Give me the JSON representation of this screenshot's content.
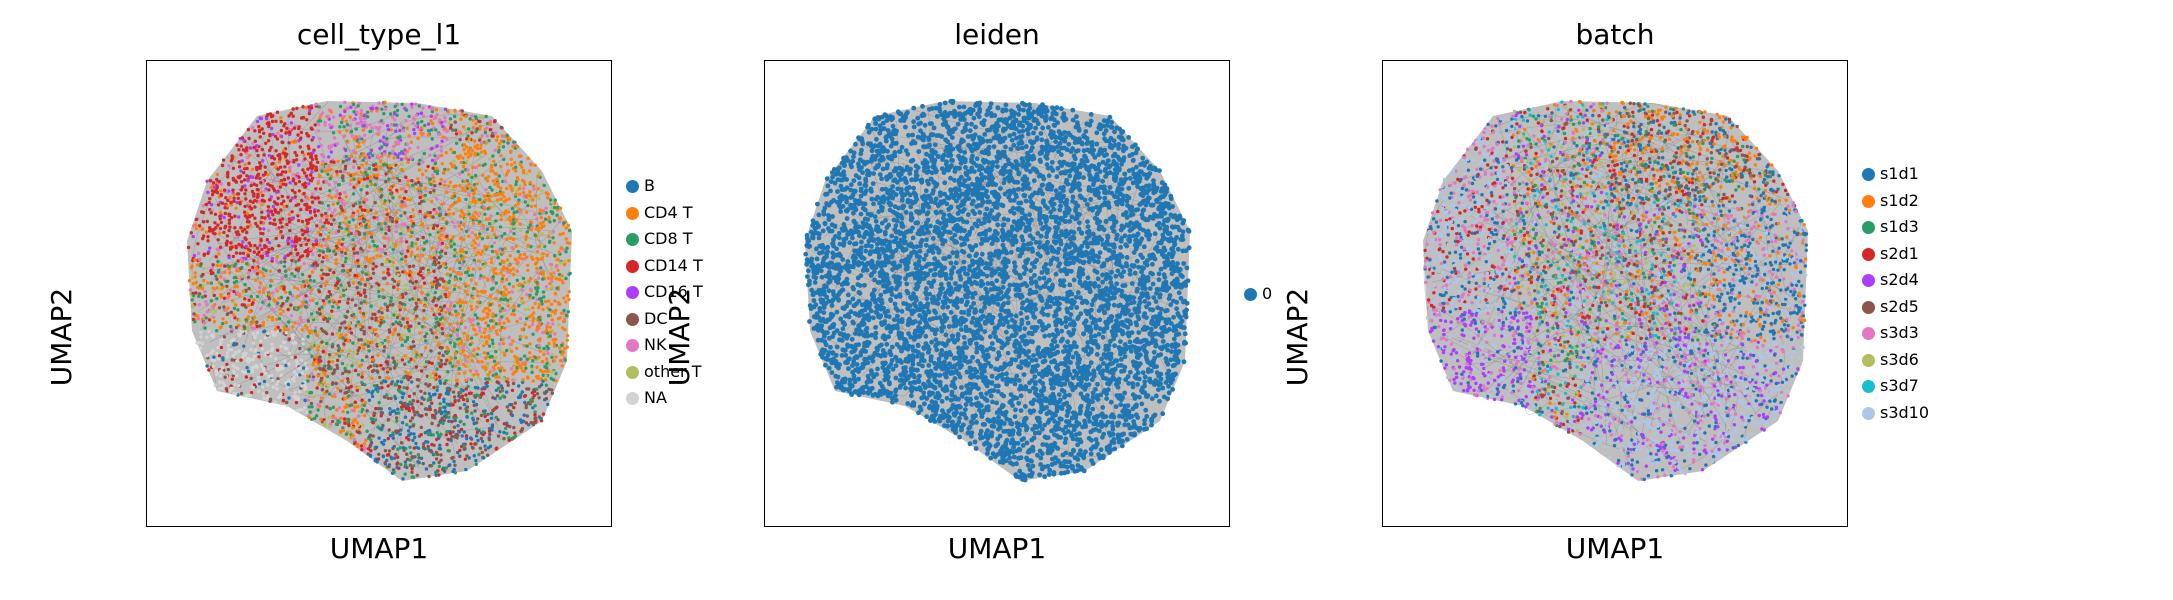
{
  "chart_data": [
    {
      "type": "scatter",
      "title": "cell_type_l1",
      "xlabel": "UMAP1",
      "ylabel": "UMAP2",
      "grid": false,
      "legend_position": "right",
      "series": [
        {
          "name": "B",
          "color": "#1f77b4"
        },
        {
          "name": "CD4 T",
          "color": "#ff7f0e"
        },
        {
          "name": "CD8 T",
          "color": "#279e68"
        },
        {
          "name": "CD14 T",
          "color": "#d62728"
        },
        {
          "name": "CD16 T",
          "color": "#aa40fc"
        },
        {
          "name": "DC",
          "color": "#8c564b"
        },
        {
          "name": "NK",
          "color": "#e377c2"
        },
        {
          "name": "other T",
          "color": "#b5bd61"
        },
        {
          "name": "NA",
          "color": "#d3d3d3"
        }
      ]
    },
    {
      "type": "scatter",
      "title": "leiden",
      "xlabel": "UMAP1",
      "ylabel": "UMAP2",
      "grid": false,
      "legend_position": "right",
      "series": [
        {
          "name": "0",
          "color": "#1f77b4"
        }
      ]
    },
    {
      "type": "scatter",
      "title": "batch",
      "xlabel": "UMAP1",
      "ylabel": "UMAP2",
      "grid": false,
      "legend_position": "right",
      "series": [
        {
          "name": "s1d1",
          "color": "#1f77b4"
        },
        {
          "name": "s1d2",
          "color": "#ff7f0e"
        },
        {
          "name": "s1d3",
          "color": "#279e68"
        },
        {
          "name": "s2d1",
          "color": "#d62728"
        },
        {
          "name": "s2d4",
          "color": "#aa40fc"
        },
        {
          "name": "s2d5",
          "color": "#8c564b"
        },
        {
          "name": "s3d3",
          "color": "#e377c2"
        },
        {
          "name": "s3d6",
          "color": "#b5bd61"
        },
        {
          "name": "s3d7",
          "color": "#17becf"
        },
        {
          "name": "s3d10",
          "color": "#aec7e8"
        }
      ]
    }
  ],
  "edge_color": "#7f7f7f"
}
